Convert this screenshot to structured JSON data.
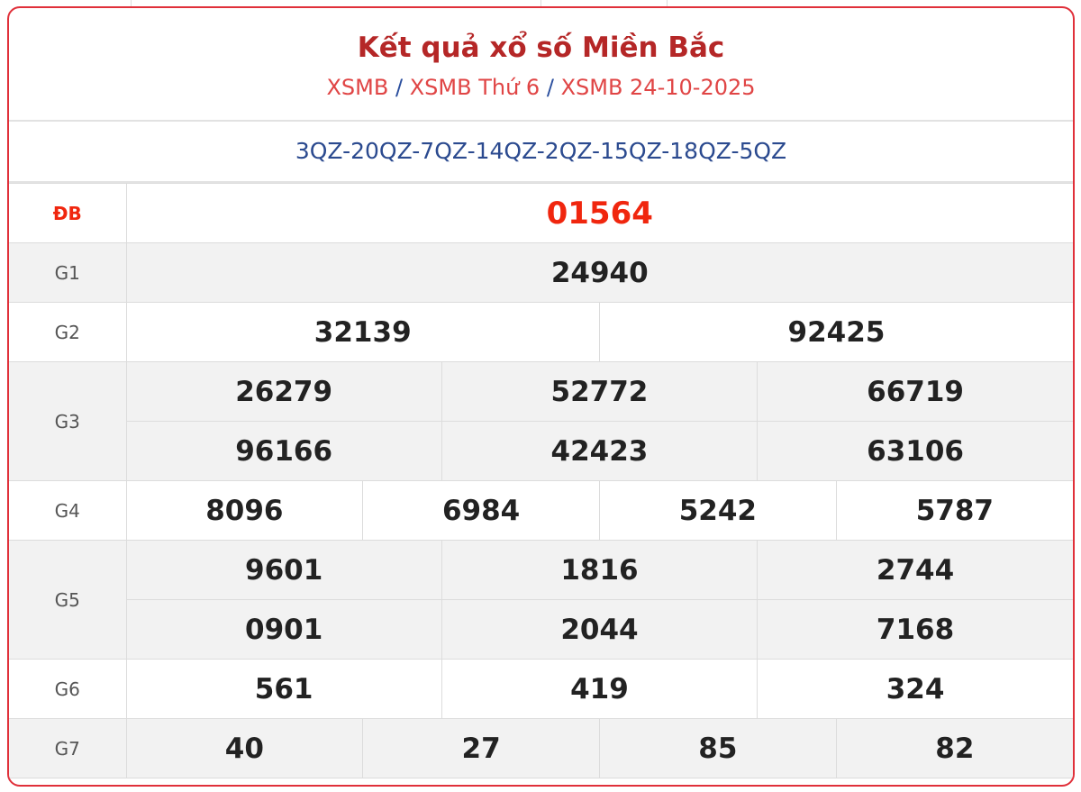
{
  "header": {
    "title": "Kết quả xổ số Miền Bắc",
    "breadcrumb": [
      "XSMB",
      "XSMB Thứ 6",
      "XSMB 24-10-2025"
    ],
    "separator": "/"
  },
  "codes": "3QZ-20QZ-7QZ-14QZ-2QZ-15QZ-18QZ-5QZ",
  "prizes": {
    "db": {
      "label": "ĐB",
      "numbers": [
        "01564"
      ]
    },
    "g1": {
      "label": "G1",
      "numbers": [
        "24940"
      ]
    },
    "g2": {
      "label": "G2",
      "numbers": [
        "32139",
        "92425"
      ]
    },
    "g3": {
      "label": "G3",
      "numbers": [
        "26279",
        "52772",
        "66719",
        "96166",
        "42423",
        "63106"
      ]
    },
    "g4": {
      "label": "G4",
      "numbers": [
        "8096",
        "6984",
        "5242",
        "5787"
      ]
    },
    "g5": {
      "label": "G5",
      "numbers": [
        "9601",
        "1816",
        "2744",
        "0901",
        "2044",
        "7168"
      ]
    },
    "g6": {
      "label": "G6",
      "numbers": [
        "561",
        "419",
        "324"
      ]
    },
    "g7": {
      "label": "G7",
      "numbers": [
        "40",
        "27",
        "85",
        "82"
      ]
    }
  },
  "colors": {
    "border": "#e0303a",
    "title": "#b52727",
    "special": "#f0260e",
    "codes": "#2b4a8f"
  }
}
